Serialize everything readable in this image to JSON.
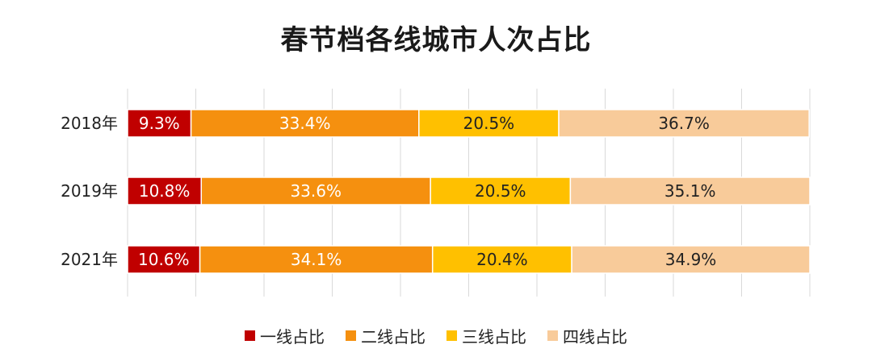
{
  "chart_data": {
    "type": "bar",
    "orientation": "horizontal",
    "stacked": true,
    "normalized": true,
    "title": "春节档各线城市人次占比",
    "categories": [
      "2018年",
      "2019年",
      "2021年"
    ],
    "series": [
      {
        "name": "一线占比",
        "color": "#C00000",
        "values": [
          9.3,
          10.8,
          10.6
        ]
      },
      {
        "name": "二线占比",
        "color": "#F5900F",
        "values": [
          33.4,
          33.6,
          34.1
        ]
      },
      {
        "name": "三线占比",
        "color": "#FFC000",
        "values": [
          20.5,
          20.5,
          20.4
        ]
      },
      {
        "name": "四线占比",
        "color": "#F8CB9A",
        "values": [
          36.7,
          35.1,
          34.9
        ]
      }
    ],
    "value_suffix": "%",
    "xlim": [
      0,
      100
    ],
    "grid": true,
    "legend_position": "bottom",
    "xlabel": "",
    "ylabel": ""
  }
}
